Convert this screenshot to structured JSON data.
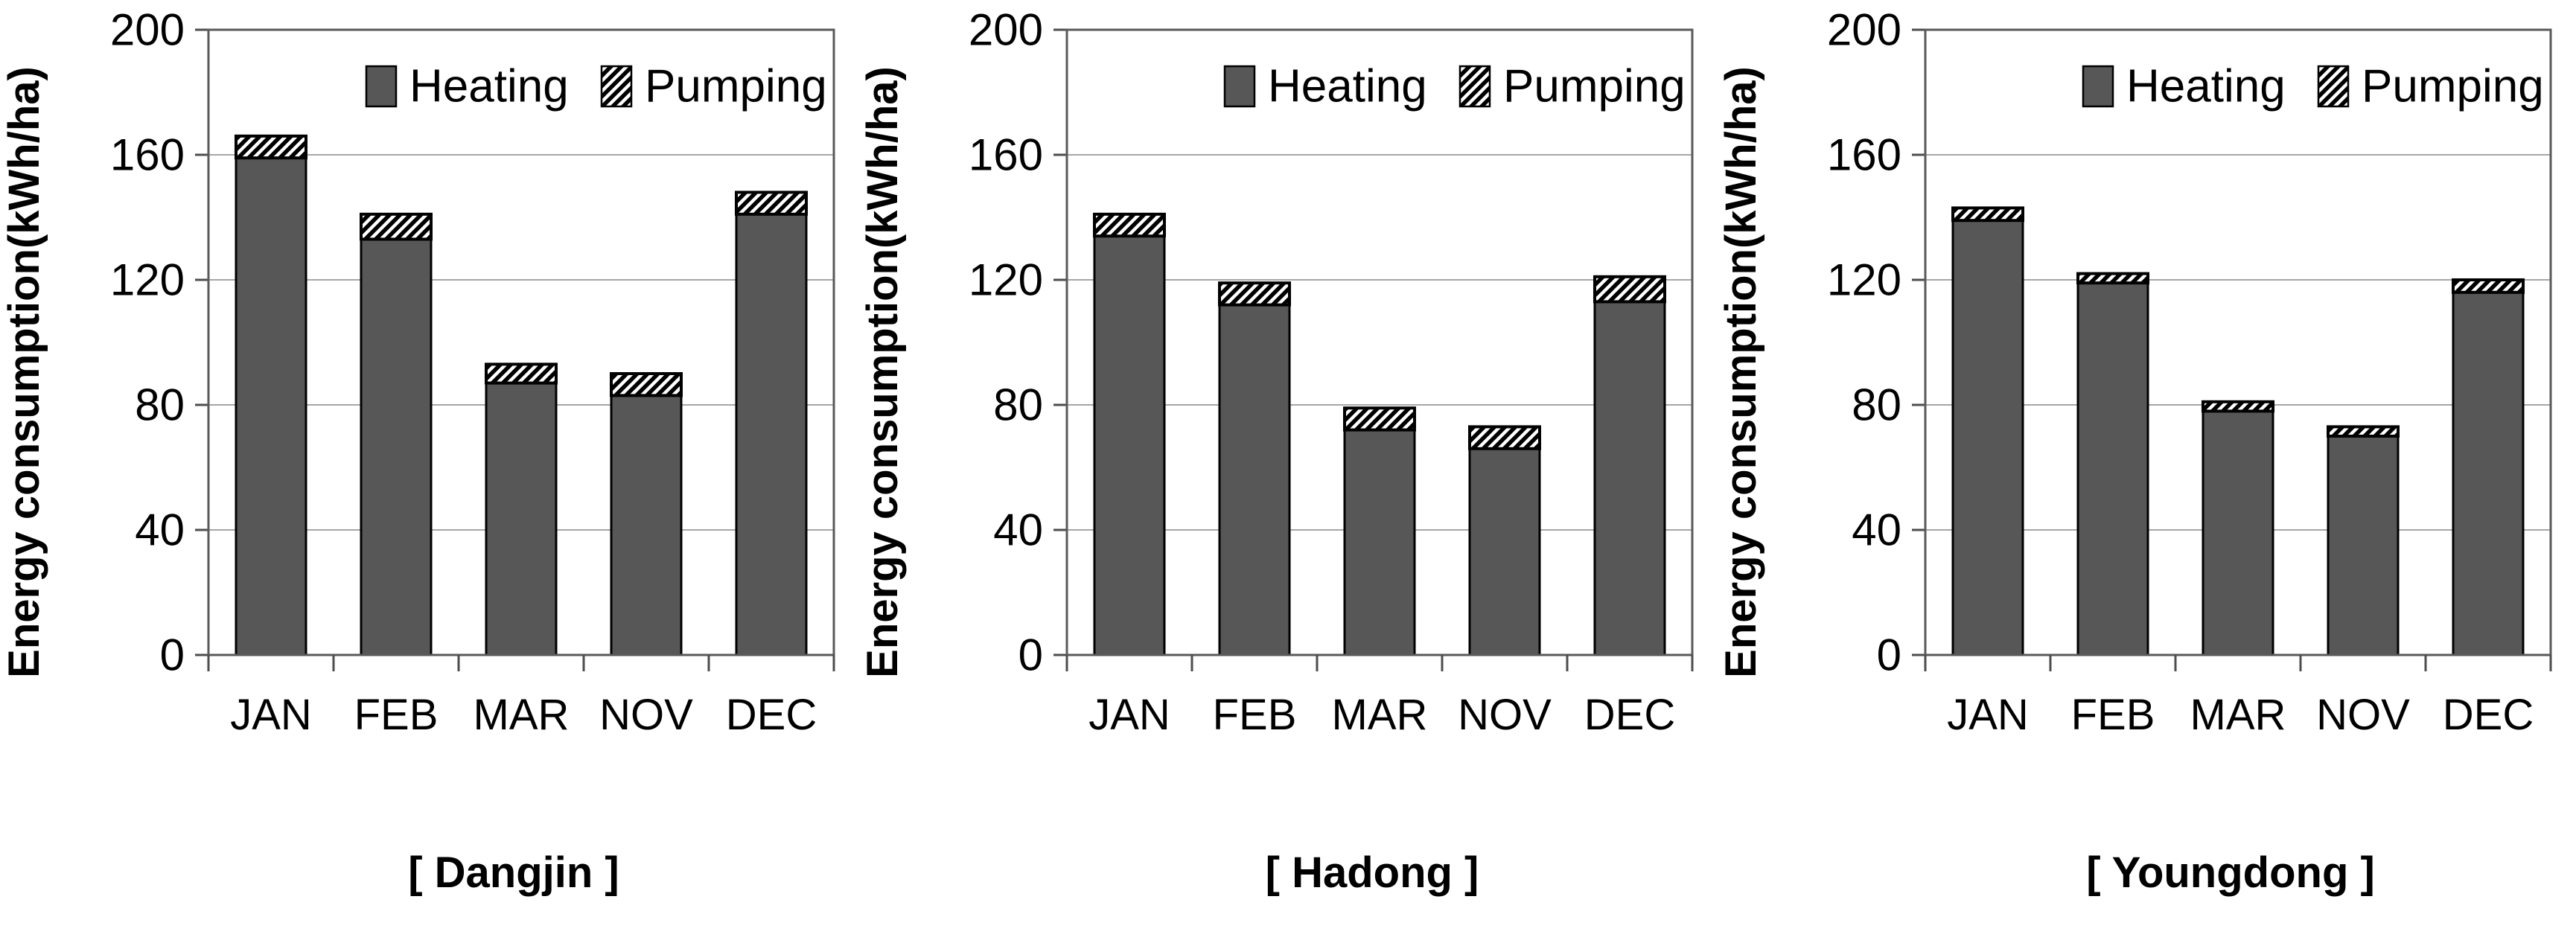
{
  "figure": {
    "background": "#ffffff",
    "heating_fill": "#575757",
    "bar_border": "#000000",
    "hatch_line_color": "#000000",
    "hatch_bg": "#ffffff",
    "grid_color": "#a6a6a6",
    "frame_color": "#595959",
    "tick_color": "#4d4d4d",
    "unit": "kWh/ha"
  },
  "chart_data": [
    {
      "type": "bar",
      "stacked": true,
      "title": "[ Dangjin ]",
      "xlabel": "",
      "ylabel": "Energy consumption(kWh/ha)",
      "ylim": [
        0,
        200
      ],
      "yticks": [
        0,
        40,
        80,
        120,
        160,
        200
      ],
      "grid": true,
      "legend_position": "top-inside",
      "categories": [
        "JAN",
        "FEB",
        "MAR",
        "NOV",
        "DEC"
      ],
      "series": [
        {
          "name": "Heating",
          "style": "solid",
          "values": [
            159,
            133,
            87,
            83,
            141
          ]
        },
        {
          "name": "Pumping",
          "style": "hatched",
          "values": [
            7,
            8,
            6,
            7,
            7
          ]
        }
      ],
      "totals": [
        166,
        141,
        93,
        90,
        148
      ]
    },
    {
      "type": "bar",
      "stacked": true,
      "title": "[ Hadong ]",
      "xlabel": "",
      "ylabel": "Energy consumption(kWh/ha)",
      "ylim": [
        0,
        200
      ],
      "yticks": [
        0,
        40,
        80,
        120,
        160,
        200
      ],
      "grid": true,
      "legend_position": "top-inside",
      "categories": [
        "JAN",
        "FEB",
        "MAR",
        "NOV",
        "DEC"
      ],
      "series": [
        {
          "name": "Heating",
          "style": "solid",
          "values": [
            134,
            112,
            72,
            66,
            113
          ]
        },
        {
          "name": "Pumping",
          "style": "hatched",
          "values": [
            7,
            7,
            7,
            7,
            8
          ]
        }
      ],
      "totals": [
        141,
        119,
        79,
        73,
        121
      ]
    },
    {
      "type": "bar",
      "stacked": true,
      "title": "[ Youngdong ]",
      "xlabel": "",
      "ylabel": "Energy consumption(kWh/ha)",
      "ylim": [
        0,
        200
      ],
      "yticks": [
        0,
        40,
        80,
        120,
        160,
        200
      ],
      "grid": true,
      "legend_position": "top-inside",
      "categories": [
        "JAN",
        "FEB",
        "MAR",
        "NOV",
        "DEC"
      ],
      "series": [
        {
          "name": "Heating",
          "style": "solid",
          "values": [
            139,
            119,
            78,
            70,
            116
          ]
        },
        {
          "name": "Pumping",
          "style": "hatched",
          "values": [
            4,
            3,
            3,
            3,
            4
          ]
        }
      ],
      "totals": [
        143,
        122,
        81,
        73,
        120
      ]
    }
  ]
}
